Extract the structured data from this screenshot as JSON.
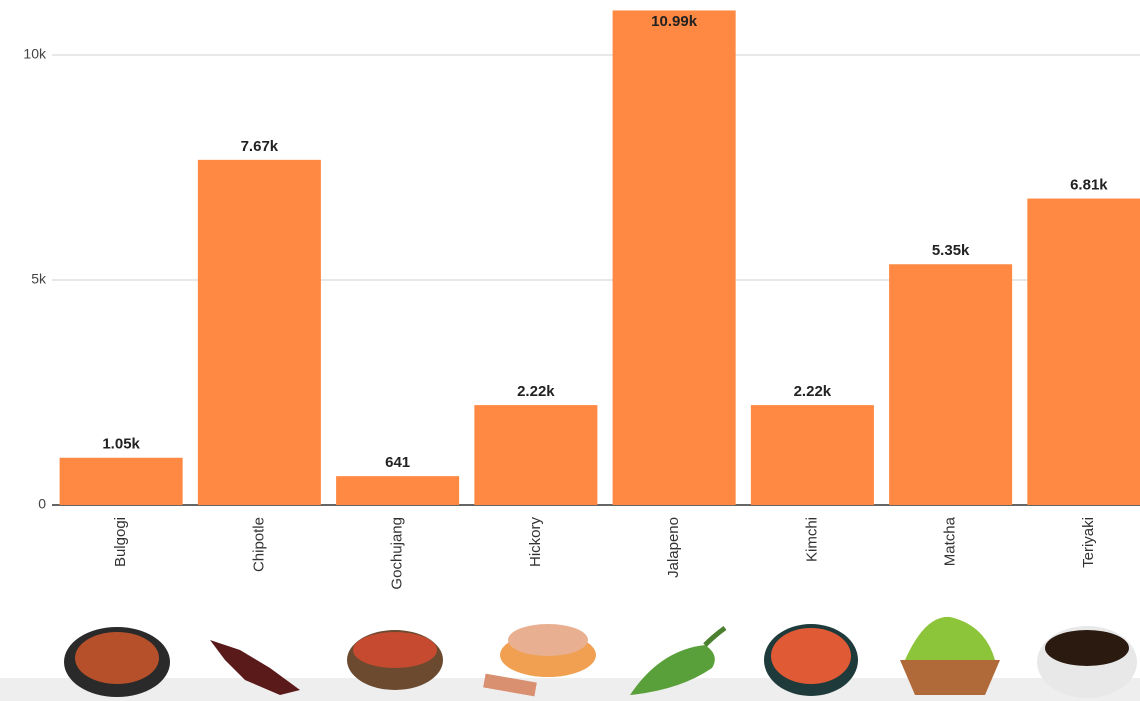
{
  "chart_data": {
    "type": "bar",
    "categories": [
      "Bulgogi",
      "Chipotle",
      "Gochujang",
      "Hickory",
      "Jalapeno",
      "Kimchi",
      "Matcha",
      "Teriyaki"
    ],
    "values": [
      1050,
      7670,
      641,
      2220,
      10990,
      2220,
      5350,
      6810
    ],
    "value_labels": [
      "1.05k",
      "7.67k",
      "641",
      "2.22k",
      "10.99k",
      "2.22k",
      "5.35k",
      "6.81k"
    ],
    "color": "#ff8842",
    "ylim": [
      0,
      11000
    ],
    "yticks": [
      0,
      {
        "value": 5000,
        "label": "5k"
      },
      {
        "value": 10000,
        "label": "10k"
      }
    ],
    "grid": true
  }
}
